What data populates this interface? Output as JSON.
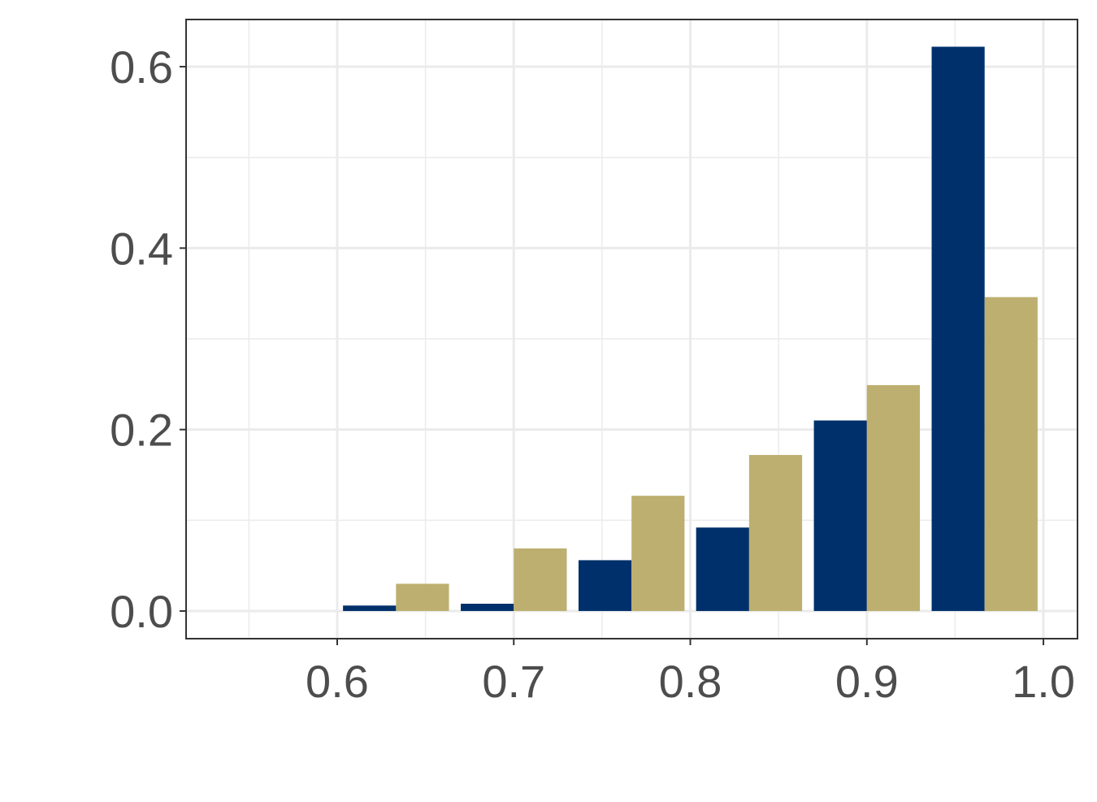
{
  "chart_data": {
    "type": "bar",
    "x": [
      0.6333,
      0.7,
      0.7667,
      0.8333,
      0.9,
      0.9667
    ],
    "series": [
      {
        "color": "#00306b",
        "values": [
          0.006,
          0.008,
          0.056,
          0.092,
          0.21,
          0.622
        ]
      },
      {
        "color": "#bdaf6f",
        "values": [
          0.03,
          0.069,
          0.127,
          0.172,
          0.249,
          0.346
        ]
      }
    ],
    "xlim": [
      0.5144,
      1.0193
    ],
    "xticks": [
      0.6,
      0.7,
      0.8,
      0.9,
      {
        "value": 1,
        "label": "1.0"
      }
    ],
    "ylim": [
      -0.0305,
      0.652
    ],
    "yticks": [
      {
        "value": 0,
        "label": "0.0"
      },
      0.2,
      0.4,
      0.6
    ],
    "grid": true
  }
}
